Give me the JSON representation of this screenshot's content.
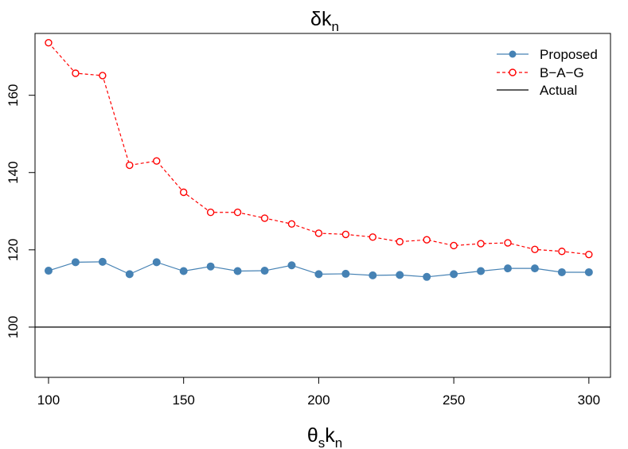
{
  "chart_data": {
    "type": "line",
    "title_main": "δk",
    "title_sub": "n",
    "xlabel_main": "θ",
    "xlabel_sub1": "s",
    "xlabel_mid": "k",
    "xlabel_sub2": "n",
    "xlim": [
      95,
      308
    ],
    "ylim": [
      87,
      176
    ],
    "xticks": [
      100,
      150,
      200,
      250,
      300
    ],
    "yticks": [
      100,
      120,
      140,
      160
    ],
    "x": [
      100,
      110,
      120,
      130,
      140,
      150,
      160,
      170,
      180,
      190,
      200,
      210,
      220,
      230,
      240,
      250,
      260,
      270,
      280,
      290,
      300
    ],
    "series": [
      {
        "name": "Proposed",
        "color": "#4682B4",
        "style": "solid-filled-circle",
        "values": [
          114.6,
          116.8,
          116.9,
          113.7,
          116.8,
          114.5,
          115.7,
          114.5,
          114.6,
          116.0,
          113.7,
          113.8,
          113.4,
          113.5,
          113.0,
          113.7,
          114.5,
          115.2,
          115.2,
          114.2,
          114.2
        ]
      },
      {
        "name": "B−A−G",
        "color": "#FF0000",
        "style": "dashed-open-circle",
        "values": [
          173.6,
          165.7,
          165.1,
          141.9,
          143.0,
          134.9,
          129.7,
          129.7,
          128.2,
          126.7,
          124.3,
          124.0,
          123.3,
          122.1,
          122.6,
          121.1,
          121.6,
          121.8,
          120.1,
          119.6,
          118.8
        ]
      },
      {
        "name": "Actual",
        "color": "#000000",
        "style": "solid-line",
        "hline": 100
      }
    ],
    "legend_position": "top-right",
    "grid": false
  }
}
